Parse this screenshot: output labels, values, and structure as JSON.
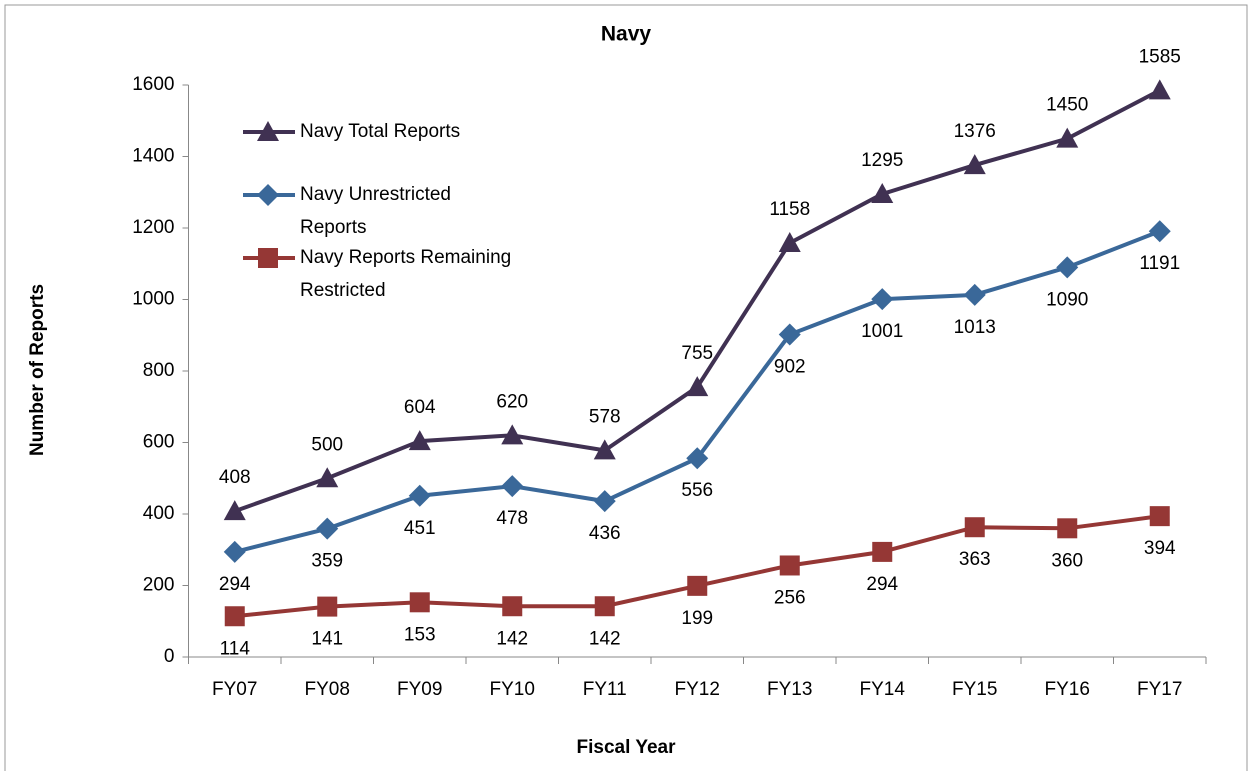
{
  "chart_data": {
    "type": "line",
    "title": "Navy",
    "x_label": "Fiscal Year",
    "y_label": "Number of Reports",
    "categories": [
      "FY07",
      "FY08",
      "FY09",
      "FY10",
      "FY11",
      "FY12",
      "FY13",
      "FY14",
      "FY15",
      "FY16",
      "FY17"
    ],
    "series": [
      {
        "name": "Navy Total Reports",
        "color": "#403152",
        "marker": "triangle",
        "label_side": "above",
        "values": [
          408,
          500,
          604,
          620,
          578,
          755,
          1158,
          1295,
          1376,
          1450,
          1585
        ]
      },
      {
        "name": "Navy Unrestricted Reports",
        "color": "#3a6899",
        "marker": "diamond",
        "label_side": "below",
        "values": [
          294,
          359,
          451,
          478,
          436,
          556,
          902,
          1001,
          1013,
          1090,
          1191
        ]
      },
      {
        "name": "Navy Reports Remaining Restricted",
        "color": "#953735",
        "marker": "square",
        "label_side": "below",
        "values": [
          114,
          141,
          153,
          142,
          142,
          199,
          256,
          294,
          363,
          360,
          394
        ]
      }
    ],
    "ylim": [
      0,
      1600
    ],
    "yticks": [
      0,
      200,
      400,
      600,
      800,
      1000,
      1200,
      1400,
      1600
    ],
    "grid": false,
    "legend": "upper left"
  }
}
